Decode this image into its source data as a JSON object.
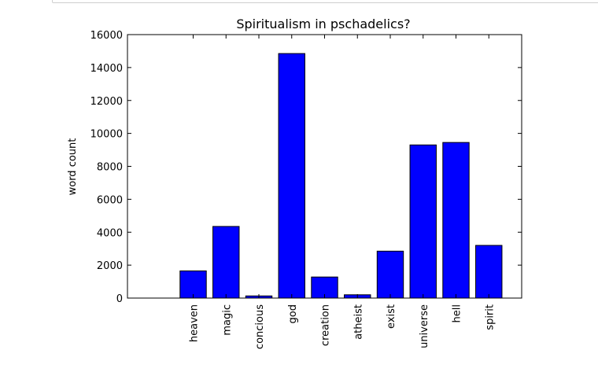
{
  "chart_data": {
    "type": "bar",
    "title": "Spiritualism in pschadelics?",
    "xlabel": "",
    "ylabel": "word count",
    "categories": [
      "heaven",
      "magic",
      "concious",
      "god",
      "creation",
      "atheist",
      "exist",
      "universe",
      "hell",
      "spirit"
    ],
    "values": [
      1650,
      4350,
      130,
      14850,
      1280,
      200,
      2850,
      9300,
      9450,
      3200
    ],
    "ylim": [
      0,
      16000
    ],
    "yticks": [
      "0",
      "2000",
      "4000",
      "6000",
      "8000",
      "10000",
      "12000",
      "14000",
      "16000"
    ],
    "grid": false,
    "bar_color": "#0000ff",
    "edge_color": "#000000"
  }
}
